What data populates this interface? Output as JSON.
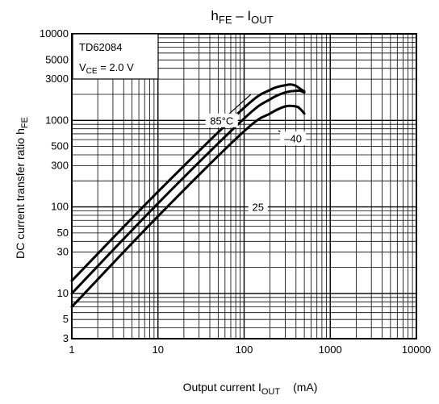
{
  "chart_data": {
    "type": "line",
    "title": {
      "main": "h",
      "main_sub": "FE",
      "sep": " – I",
      "sep_sub": "OUT"
    },
    "device_label": "TD62084",
    "condition": {
      "main": "V",
      "sub": "CE",
      "rest": " = 2.0 V"
    },
    "xlabel": {
      "main": "Output current   I",
      "sub": "OUT",
      "unit": "(mA)"
    },
    "ylabel": {
      "main": "DC current transfer ratio   h",
      "sub": "FE"
    },
    "xscale": "log",
    "yscale": "log",
    "xlim": [
      1,
      10000
    ],
    "ylim": [
      3,
      10000
    ],
    "grid": true,
    "xticks": [
      {
        "v": 1,
        "label": "1"
      },
      {
        "v": 10,
        "label": "10"
      },
      {
        "v": 100,
        "label": "100"
      },
      {
        "v": 1000,
        "label": "1000"
      },
      {
        "v": 10000,
        "label": "10000"
      }
    ],
    "yticks": [
      {
        "v": 3,
        "label": "3"
      },
      {
        "v": 5,
        "label": "5"
      },
      {
        "v": 10,
        "label": "10"
      },
      {
        "v": 30,
        "label": "30"
      },
      {
        "v": 50,
        "label": "50"
      },
      {
        "v": 100,
        "label": "100"
      },
      {
        "v": 300,
        "label": "300"
      },
      {
        "v": 500,
        "label": "500"
      },
      {
        "v": 1000,
        "label": "1000"
      },
      {
        "v": 3000,
        "label": "3000"
      },
      {
        "v": 5000,
        "label": "5000"
      },
      {
        "v": 10000,
        "label": "10000"
      }
    ],
    "series": [
      {
        "name": "85°C",
        "x": [
          1,
          10,
          100,
          200,
          300,
          350,
          400,
          500
        ],
        "y": [
          14,
          150,
          1400,
          2250,
          2550,
          2600,
          2500,
          2150
        ]
      },
      {
        "name": "25",
        "x": [
          1,
          10,
          100,
          200,
          300,
          400,
          450,
          500
        ],
        "y": [
          10,
          110,
          1050,
          1750,
          2100,
          2200,
          2200,
          2100
        ]
      },
      {
        "name": "–40",
        "x": [
          1,
          10,
          100,
          200,
          300,
          400,
          450,
          500
        ],
        "y": [
          7,
          78,
          750,
          1200,
          1450,
          1450,
          1350,
          1200
        ]
      }
    ],
    "annotations": [
      {
        "text": "85°C",
        "x": 55,
        "y": 1000,
        "tx": 120,
        "ty": 2000
      },
      {
        "text": "–40",
        "x": 370,
        "y": 620,
        "tx": 250,
        "ty": 760
      },
      {
        "text": "25",
        "x": 145,
        "y": 100,
        "tx": 115,
        "ty": 115
      }
    ]
  }
}
